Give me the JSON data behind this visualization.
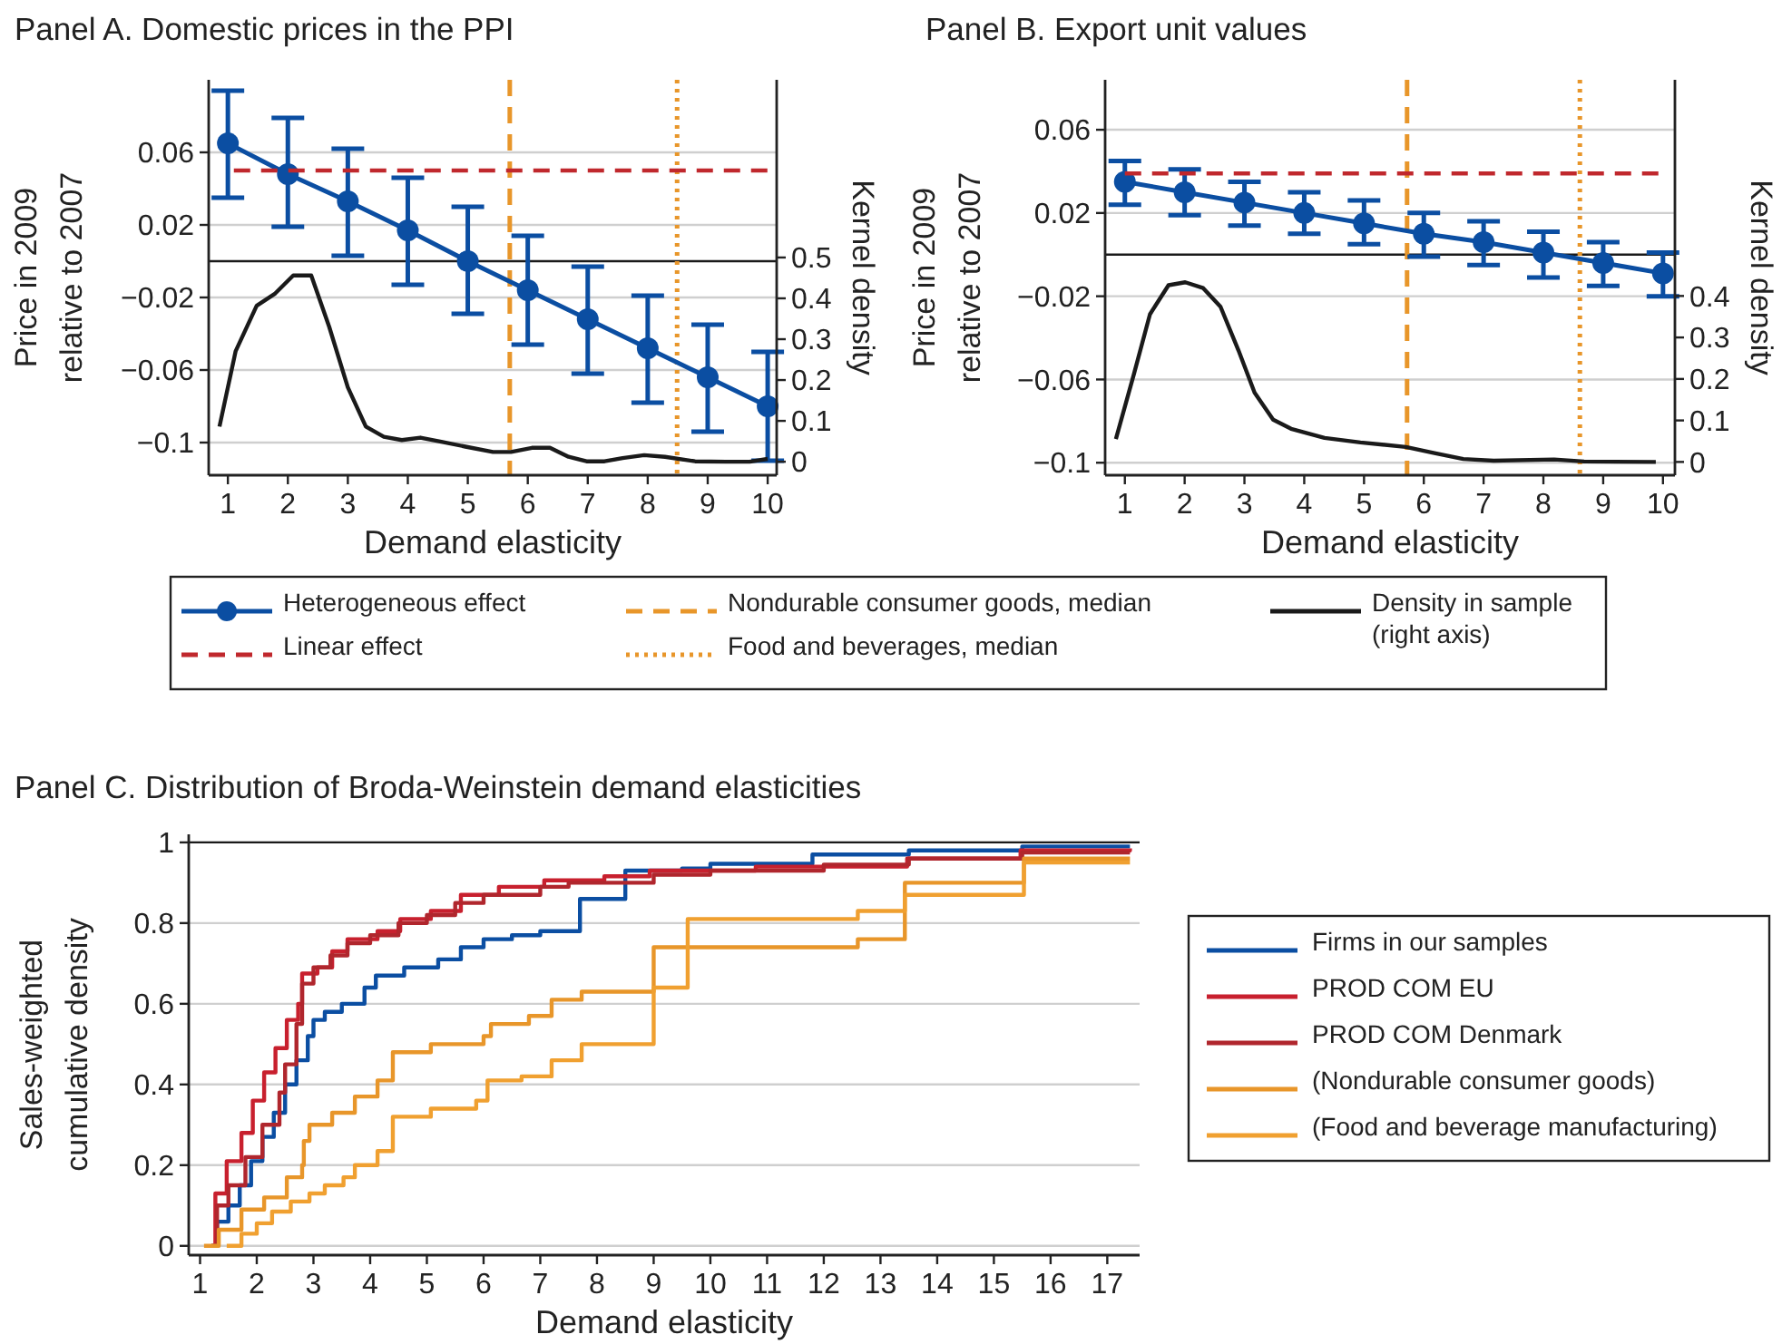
{
  "chart_data": [
    {
      "type": "line",
      "title": "Panel A. Domestic prices in the PPI",
      "xlabel": "Demand elasticity",
      "ylabel": "Price in 2009 relative to 2007",
      "y2label": "Kernel density",
      "x": [
        1,
        2,
        3,
        4,
        5,
        6,
        7,
        8,
        9,
        10
      ],
      "xlim": [
        0.68,
        10.15
      ],
      "xticks": [
        1,
        2,
        3,
        4,
        5,
        6,
        7,
        8,
        9,
        10
      ],
      "ylim": [
        -0.118,
        0.1
      ],
      "yticks": [
        {
          "value": -0.1,
          "label": "−0.1"
        },
        {
          "value": -0.06,
          "label": "−0.06"
        },
        {
          "value": -0.02,
          "label": "−0.02"
        },
        0.02,
        0.06
      ],
      "y2lim": [
        -0.033,
        0.935
      ],
      "y2ticks": [
        0,
        0.1,
        0.2,
        0.3,
        0.4,
        0.5
      ],
      "grid": "y",
      "legend": "bottom",
      "series": [
        {
          "name": "Heterogeneous effect",
          "color": "#0b4ea2",
          "marker": "circle",
          "values": [
            0.065,
            0.048,
            0.033,
            0.017,
            0.0,
            -0.016,
            -0.032,
            -0.048,
            -0.064,
            -0.08
          ],
          "errors": [
            [
              0.035,
              0.094
            ],
            [
              0.019,
              0.079
            ],
            [
              0.003,
              0.062
            ],
            [
              -0.013,
              0.046
            ],
            [
              -0.029,
              0.03
            ],
            [
              -0.046,
              0.014
            ],
            [
              -0.062,
              -0.003
            ],
            [
              -0.078,
              -0.019
            ],
            [
              -0.094,
              -0.035
            ],
            [
              -0.11,
              -0.05
            ]
          ]
        },
        {
          "name": "Linear effect",
          "color": "#c0282d",
          "line_style": "dashed",
          "x": [
            1.1,
            10
          ],
          "values": [
            0.05,
            0.05
          ]
        },
        {
          "name": "Density in sample (right axis)",
          "color": "#1a1a1a",
          "axis": "y2",
          "x": [
            0.86,
            1.13,
            1.48,
            1.79,
            2.09,
            2.39,
            2.69,
            3.0,
            3.3,
            3.6,
            3.9,
            4.21,
            4.56,
            4.96,
            5.42,
            5.72,
            6.07,
            6.37,
            6.68,
            6.98,
            7.28,
            7.58,
            7.94,
            8.29,
            8.79,
            9.3,
            9.7,
            10.0
          ],
          "values": [
            0.086,
            0.271,
            0.382,
            0.412,
            0.456,
            0.456,
            0.33,
            0.182,
            0.086,
            0.061,
            0.053,
            0.059,
            0.049,
            0.037,
            0.024,
            0.024,
            0.034,
            0.034,
            0.012,
            0.001,
            0.001,
            0.009,
            0.016,
            0.012,
            0.001,
            0.0,
            0.0,
            0.007
          ]
        }
      ],
      "ref_lines": [
        {
          "axis": "y",
          "value": 0,
          "color": "#1a1a1a"
        },
        {
          "axis": "x",
          "value": 5.7,
          "label": "Nondurable consumer goods, median",
          "color": "#e8962a",
          "line_style": "dashed"
        },
        {
          "axis": "x",
          "value": 8.49,
          "label": "Food and beverages, median",
          "color": "#e8962a",
          "line_style": "dotted"
        }
      ]
    },
    {
      "type": "line",
      "title": "Panel B. Export unit values",
      "xlabel": "Demand elasticity",
      "ylabel": "Price in 2009 relative to 2007",
      "y2label": "Kernel density",
      "x": [
        1,
        2,
        3,
        4,
        5,
        6,
        7,
        8,
        9,
        10
      ],
      "xlim": [
        0.67,
        10.2
      ],
      "xticks": [
        1,
        2,
        3,
        4,
        5,
        6,
        7,
        8,
        9,
        10
      ],
      "ylim": [
        -0.106,
        0.084
      ],
      "yticks": [
        {
          "value": -0.1,
          "label": "−0.1"
        },
        {
          "value": -0.06,
          "label": "−0.06"
        },
        {
          "value": -0.02,
          "label": "−0.02"
        },
        0.02,
        0.06
      ],
      "y2lim": [
        -0.032,
        0.921
      ],
      "y2ticks": [
        0,
        0.1,
        0.2,
        0.3,
        0.4
      ],
      "grid": "y",
      "series": [
        {
          "color": "#0b4ea2",
          "marker": "circle",
          "values": [
            0.035,
            0.03,
            0.025,
            0.02,
            0.015,
            0.01,
            0.006,
            0.001,
            -0.004,
            -0.009
          ],
          "errors": [
            [
              0.024,
              0.045
            ],
            [
              0.019,
              0.041
            ],
            [
              0.014,
              0.035
            ],
            [
              0.01,
              0.03
            ],
            [
              0.005,
              0.026
            ],
            [
              -0.001,
              0.02
            ],
            [
              -0.005,
              0.016
            ],
            [
              -0.011,
              0.011
            ],
            [
              -0.015,
              0.006
            ],
            [
              -0.02,
              0.001
            ]
          ]
        },
        {
          "color": "#c0282d",
          "line_style": "dashed",
          "x": [
            1,
            10
          ],
          "values": [
            0.039,
            0.039
          ]
        },
        {
          "color": "#1a1a1a",
          "axis": "y2",
          "x": [
            0.85,
            1.15,
            1.42,
            1.73,
            2.01,
            2.31,
            2.6,
            2.9,
            3.17,
            3.48,
            3.78,
            4.34,
            4.94,
            5.7,
            6.16,
            6.66,
            7.17,
            8.18,
            8.68,
            9.88
          ],
          "values": [
            0.055,
            0.211,
            0.356,
            0.426,
            0.433,
            0.419,
            0.374,
            0.269,
            0.167,
            0.102,
            0.08,
            0.058,
            0.047,
            0.036,
            0.022,
            0.007,
            0.003,
            0.006,
            0.001,
            0.0
          ]
        }
      ],
      "ref_lines": [
        {
          "axis": "y",
          "value": 0,
          "color": "#1a1a1a"
        },
        {
          "axis": "x",
          "value": 5.72,
          "color": "#e8962a",
          "line_style": "dashed"
        },
        {
          "axis": "x",
          "value": 8.61,
          "color": "#e8962a",
          "line_style": "dotted"
        }
      ]
    },
    {
      "type": "step",
      "title": "Panel C. Distribution of Broda-Weinstein demand elasticities",
      "xlabel": "Demand elasticity",
      "ylabel": "Sales-weighted cumulative density",
      "xlim": [
        0.8,
        17.57
      ],
      "xticks": [
        1,
        2,
        3,
        4,
        5,
        6,
        7,
        8,
        9,
        10,
        11,
        12,
        13,
        14,
        15,
        16,
        17
      ],
      "ylim": [
        -0.023,
        1.02
      ],
      "yticks": [
        0,
        0.2,
        0.4,
        0.6,
        0.8,
        1
      ],
      "grid": "y",
      "legend": "right",
      "ref_lines": [
        {
          "axis": "y",
          "value": 1,
          "color": "#1a1a1a"
        }
      ],
      "series": [
        {
          "name": "Firms in our samples",
          "color": "#0b4ea2",
          "x": [
            1.2,
            1.3,
            1.5,
            1.7,
            1.9,
            2.1,
            2.3,
            2.5,
            2.7,
            2.9,
            3.0,
            3.2,
            3.5,
            3.9,
            4.1,
            4.6,
            5.2,
            5.6,
            6.0,
            6.5,
            7.0,
            7.7,
            8.5,
            9.5,
            10.0,
            11.8,
            13.5,
            15.5,
            17.4
          ],
          "values": [
            0,
            0.06,
            0.1,
            0.15,
            0.21,
            0.27,
            0.33,
            0.4,
            0.46,
            0.52,
            0.56,
            0.58,
            0.6,
            0.64,
            0.67,
            0.69,
            0.71,
            0.74,
            0.76,
            0.77,
            0.78,
            0.86,
            0.93,
            0.935,
            0.947,
            0.97,
            0.98,
            0.99,
            0.99
          ]
        },
        {
          "name": "PROD COM EU",
          "color": "#c8202e",
          "x": [
            1.2,
            1.27,
            1.47,
            1.73,
            1.93,
            2.13,
            2.33,
            2.53,
            2.73,
            2.8,
            3.07,
            3.33,
            3.6,
            4.13,
            4.53,
            5.07,
            5.6,
            6.27,
            7.07,
            8.13,
            8.93,
            10.8,
            13.47,
            15.47,
            17.4
          ],
          "values": [
            0,
            0.13,
            0.21,
            0.28,
            0.36,
            0.43,
            0.49,
            0.56,
            0.6,
            0.675,
            0.69,
            0.73,
            0.76,
            0.78,
            0.81,
            0.83,
            0.87,
            0.89,
            0.906,
            0.916,
            0.93,
            0.94,
            0.96,
            0.98,
            0.985
          ]
        },
        {
          "name": "PROD COM Denmark",
          "color": "#b0262d",
          "x": [
            1.25,
            1.3,
            1.5,
            1.8,
            2.1,
            2.4,
            2.5,
            2.7,
            2.8,
            3.0,
            3.3,
            3.6,
            4.0,
            4.5,
            5.0,
            5.5,
            6.0,
            7.0,
            7.5,
            9.0,
            10.0,
            12.0,
            13.5,
            15.5,
            17.4
          ],
          "values": [
            0,
            0.1,
            0.15,
            0.22,
            0.3,
            0.38,
            0.45,
            0.55,
            0.65,
            0.69,
            0.72,
            0.75,
            0.77,
            0.8,
            0.82,
            0.85,
            0.87,
            0.89,
            0.9,
            0.92,
            0.93,
            0.945,
            0.96,
            0.975,
            0.975
          ]
        },
        {
          "name": "(Nondurable consumer goods)",
          "color": "#e8962a",
          "x": [
            1.07,
            1.33,
            1.73,
            2.13,
            2.53,
            2.8,
            2.83,
            2.93,
            3.33,
            3.73,
            4.13,
            4.4,
            5.07,
            6.0,
            6.13,
            6.8,
            7.2,
            7.73,
            9.0,
            12.6,
            13.43,
            15.53,
            17.4
          ],
          "values": [
            0,
            0.04,
            0.09,
            0.12,
            0.17,
            0.2,
            0.26,
            0.3,
            0.33,
            0.37,
            0.41,
            0.48,
            0.5,
            0.52,
            0.55,
            0.57,
            0.61,
            0.63,
            0.74,
            0.76,
            0.9,
            0.96,
            0.96
          ]
        },
        {
          "name": "(Food and beverage manufacturing)",
          "color": "#f0a030",
          "x": [
            1.47,
            1.73,
            2.0,
            2.27,
            2.6,
            2.93,
            3.2,
            3.53,
            3.73,
            4.13,
            4.4,
            5.07,
            5.87,
            6.07,
            6.67,
            7.2,
            7.73,
            9.0,
            9.6,
            12.6,
            13.43,
            15.53,
            17.4
          ],
          "values": [
            0,
            0.03,
            0.056,
            0.085,
            0.11,
            0.13,
            0.15,
            0.17,
            0.2,
            0.235,
            0.32,
            0.34,
            0.36,
            0.41,
            0.42,
            0.46,
            0.5,
            0.64,
            0.81,
            0.83,
            0.87,
            0.95,
            0.95
          ]
        }
      ]
    }
  ]
}
